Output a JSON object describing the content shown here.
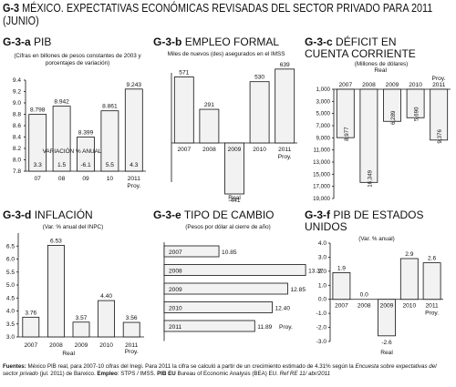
{
  "title": {
    "code": "G-3",
    "text": "MÉXICO. EXPECTATIVAS ECONÓMICAS REVISADAS DEL SECTOR PRIVADO PARA 2011 (JUNIO)"
  },
  "colors": {
    "bar_fill": "#f2f2f2",
    "bar_stroke": "#111111",
    "axis": "#111111"
  },
  "panels": {
    "a": {
      "code": "G-3-a",
      "name": "PIB",
      "subtitle": "(Cifras en billones de pesos constantes de 2003 y porcentajes de variación)",
      "annotation": "VARIACIÓN % ANUAL"
    },
    "b": {
      "code": "G-3-b",
      "name": "EMPLEO FORMAL",
      "subtitle": "Miles de nuevos (des) asegurados en el IMSS",
      "xnote": "Real"
    },
    "c": {
      "code": "G-3-c",
      "name": "DÉFICIT EN CUENTA CORRIENTE",
      "name_line1": "DÉFICIT EN",
      "name_line2": "CUENTA CORRIENTE",
      "subtitle": "(Millones de dólares)",
      "xnote": "Real"
    },
    "d": {
      "code": "G-3-d",
      "name": "INFLACIÓN",
      "subtitle": "(Var. % anual del INPC)",
      "xnote": "Real"
    },
    "e": {
      "code": "G-3-e",
      "name": "TIPO DE CAMBIO",
      "subtitle": "(Pesos por dólar al cierre de año)"
    },
    "f": {
      "code": "G-3-f",
      "name": "PIB DE ESTADOS UNIDOS",
      "name_line1": "PIB DE ESTADOS",
      "name_line2": "UNIDOS",
      "subtitle": "(Var. % anual)",
      "xnote": "Real"
    }
  },
  "chart_data": [
    {
      "id": "a",
      "type": "bar",
      "title": "PIB",
      "categories": [
        "07",
        "08",
        "09",
        "10",
        "2011 Proy."
      ],
      "values": [
        8.798,
        8.942,
        8.399,
        8.861,
        9.243
      ],
      "value_labels": [
        "8.798",
        "8.942",
        "8.399",
        "8.861",
        "9.243"
      ],
      "variation": [
        3.3,
        1.5,
        -6.1,
        5.5,
        4.3
      ],
      "variation_labels": [
        "3.3",
        "1.5",
        "-6.1",
        "5.5",
        "4.3"
      ],
      "ylim": [
        7.8,
        9.4
      ],
      "yticks": [
        "9.4",
        "9.2",
        "9.0",
        "8.8",
        "8.6",
        "8.4",
        "8.2",
        "8.0",
        "7.8"
      ],
      "xtick_labels": [
        "07",
        "08",
        "09",
        "10",
        "2011"
      ],
      "proy_label": "Proy."
    },
    {
      "id": "b",
      "type": "bar",
      "title": "EMPLEO FORMAL",
      "categories": [
        "2007",
        "2008",
        "2009",
        "2010",
        "2011 Proy."
      ],
      "values": [
        571,
        291,
        -441,
        530,
        639
      ],
      "value_labels": [
        "571",
        "291",
        "-441",
        "530",
        "639"
      ],
      "xtick_labels": [
        "2007",
        "2008",
        "2009",
        "2010",
        "2011"
      ],
      "proy_label": "Proy.",
      "ylim": [
        -500,
        700
      ]
    },
    {
      "id": "c",
      "type": "bar",
      "title": "DÉFICIT EN CUENTA CORRIENTE",
      "categories": [
        "2007",
        "2008",
        "2009",
        "2010",
        "2011 Proy."
      ],
      "values": [
        8977,
        16349,
        6289,
        5690,
        9376
      ],
      "value_labels": [
        "8,977",
        "16,349",
        "6,289",
        "5,690",
        "9,376"
      ],
      "ylim": [
        1000,
        19000
      ],
      "yticks": [
        "1,000",
        "3,000",
        "5,000",
        "7,000",
        "9,000",
        "11,000",
        "13,000",
        "15,000",
        "17,000",
        "19,000"
      ],
      "xtick_labels": [
        "2007",
        "2008",
        "2009",
        "2010",
        "2011"
      ],
      "proy_label": "Proy.",
      "inverted": true
    },
    {
      "id": "d",
      "type": "bar",
      "title": "INFLACIÓN",
      "categories": [
        "2007",
        "2008",
        "2009",
        "2010",
        "2011 Proy."
      ],
      "values": [
        3.76,
        6.53,
        3.57,
        4.4,
        3.56
      ],
      "value_labels": [
        "3.76",
        "6.53",
        "3.57",
        "4.40",
        "3.56"
      ],
      "ylim": [
        3.0,
        7.0
      ],
      "yticks": [
        "6.5",
        "6.0",
        "5.5",
        "5.0",
        "4.5",
        "4.0",
        "3.5",
        "3.0"
      ],
      "xtick_labels": [
        "2007",
        "2008",
        "2009",
        "2010",
        "2011"
      ],
      "proy_label": "Proy."
    },
    {
      "id": "e",
      "type": "bar",
      "orientation": "horizontal",
      "title": "TIPO DE CAMBIO",
      "categories": [
        "2007",
        "2008",
        "2009",
        "2010",
        "2011"
      ],
      "values": [
        10.85,
        13.37,
        12.85,
        12.4,
        11.89
      ],
      "value_labels": [
        "10.85",
        "13.37",
        "12.85",
        "12.40",
        "11.89"
      ],
      "proy_label": "Proy.",
      "xlim": [
        10.0,
        13.5
      ]
    },
    {
      "id": "f",
      "type": "bar",
      "title": "PIB DE ESTADOS UNIDOS",
      "categories": [
        "2007",
        "2008",
        "2009",
        "2010",
        "2011 Proy."
      ],
      "values": [
        1.9,
        0.0,
        -2.6,
        2.9,
        2.6
      ],
      "value_labels": [
        "1.9",
        "0.0",
        "-2.6",
        "2.9",
        "2.6"
      ],
      "ylim": [
        -3.0,
        4.0
      ],
      "yticks": [
        "4.0",
        "3.0",
        "2.0",
        "1.0",
        "0.0",
        "-1.0",
        "-2.0",
        "-3.0"
      ],
      "xtick_labels": [
        "2007",
        "2008",
        "2009",
        "2010",
        "2011"
      ],
      "proy_label": "Proy."
    }
  ],
  "footer": {
    "lead": "Fuentes:",
    "text1": " México PIB real, para 2007-10 cifras del Inegi. Para 2011 la cifra se calculó a partir de un crecimiento estimado de 4.31% según la ",
    "italic1": "Encuesta sobre expectativas del sector privado",
    "text2": " (jul. 2011) de Banxico. ",
    "empleo_label": "Empleo",
    "text3": ": STPS / IMSS. ",
    "pib_label": "PIB EU",
    "text4": " Bureau of Economic Analysis (BEA) EU. ",
    "ref": "Ref RE 11/ abr/2011"
  }
}
